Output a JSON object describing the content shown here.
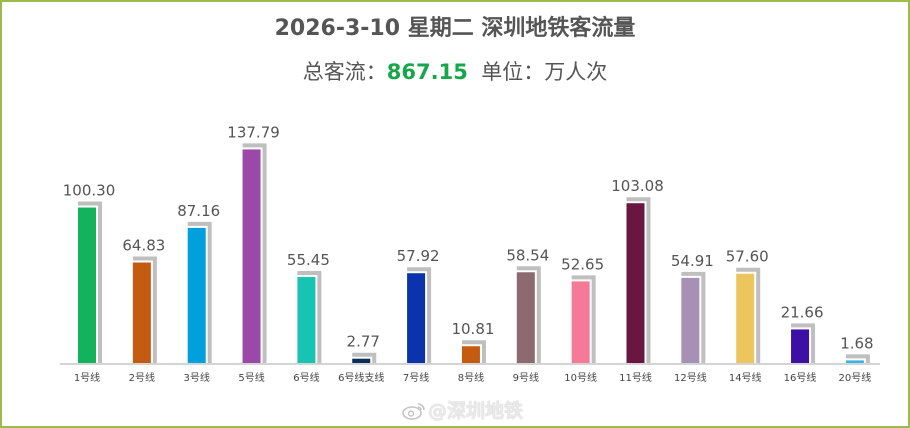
{
  "header": {
    "title": "2026-3-10 星期二  深圳地铁客流量",
    "total_prefix": "总客流：",
    "total_value": "867.15",
    "unit_text": "单位：万人次"
  },
  "watermark": "@深圳地铁",
  "chart_data": {
    "type": "bar",
    "title": "2026-3-10 星期二  深圳地铁客流量",
    "categories": [
      "1号线",
      "2号线",
      "3号线",
      "5号线",
      "6号线",
      "6号线支线",
      "7号线",
      "8号线",
      "9号线",
      "10号线",
      "11号线",
      "12号线",
      "14号线",
      "16号线",
      "20号线"
    ],
    "values": [
      100.3,
      64.83,
      87.16,
      137.79,
      55.45,
      2.77,
      57.92,
      10.81,
      58.54,
      52.65,
      103.08,
      54.91,
      57.6,
      21.66,
      1.68
    ],
    "value_labels": [
      "100.30",
      "64.83",
      "87.16",
      "137.79",
      "55.45",
      "2.77",
      "57.92",
      "10.81",
      "58.54",
      "52.65",
      "103.08",
      "54.91",
      "57.60",
      "21.66",
      "1.68"
    ],
    "colors": [
      "#13b25d",
      "#c55a11",
      "#00a0dc",
      "#9b49a8",
      "#17c3b2",
      "#0a2e5c",
      "#0a33ad",
      "#c55a11",
      "#8c6a70",
      "#f57a97",
      "#6b1640",
      "#a790b5",
      "#ecc55c",
      "#3c0fa6",
      "#37b4e4"
    ],
    "shadow_color": "#bfbfbf",
    "ylim": [
      0,
      140
    ],
    "grid": false,
    "legend": "none"
  }
}
